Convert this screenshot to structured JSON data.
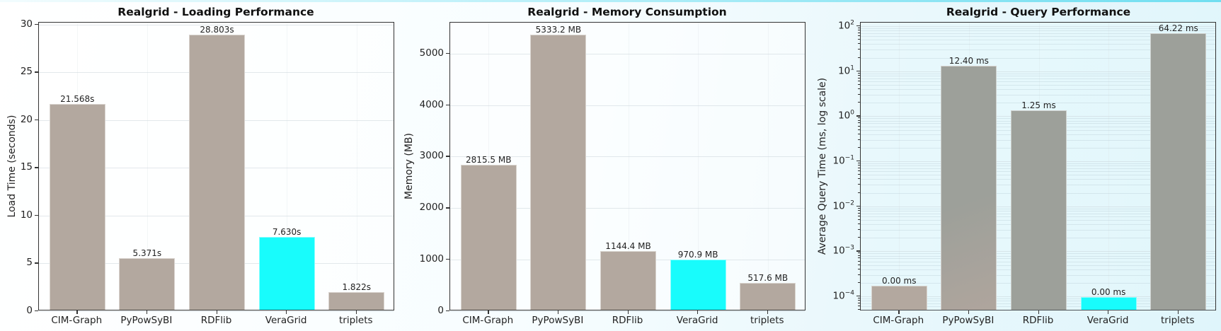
{
  "charts": [
    {
      "title": "Realgrid - Loading Performance",
      "ylabel": "Load Time (seconds)",
      "yticks": [
        "0",
        "5",
        "10",
        "15",
        "20",
        "25",
        "30"
      ],
      "categories": [
        "CIM-Graph",
        "PyPowSyBI",
        "RDFlib",
        "VeraGrid",
        "triplets"
      ],
      "labels": [
        "21.568s",
        "5.371s",
        "28.803s",
        "7.630s",
        "1.822s"
      ]
    },
    {
      "title": "Realgrid - Memory Consumption",
      "ylabel": "Memory (MB)",
      "yticks": [
        "0",
        "1000",
        "2000",
        "3000",
        "4000",
        "5000"
      ],
      "categories": [
        "CIM-Graph",
        "PyPowSyBI",
        "RDFlib",
        "VeraGrid",
        "triplets"
      ],
      "labels": [
        "2815.5 MB",
        "5333.2 MB",
        "1144.4 MB",
        "970.9 MB",
        "517.6 MB"
      ]
    },
    {
      "title": "Realgrid - Query Performance",
      "ylabel": "Average Query Time (ms, log scale)",
      "yticks": [
        "−4",
        "−3",
        "−2",
        "−1",
        "0",
        "1",
        "2"
      ],
      "ytick_base": "10",
      "categories": [
        "CIM-Graph",
        "PyPowSyBI",
        "RDFlib",
        "VeraGrid",
        "triplets"
      ],
      "labels": [
        "0.00 ms",
        "12.40 ms",
        "1.25 ms",
        "0.00 ms",
        "64.22 ms"
      ]
    }
  ],
  "colors": {
    "default_bar": "#b3a89f",
    "highlight_bar": "#18fcfc",
    "query_bar": "#9da09a"
  },
  "chart_data": [
    {
      "type": "bar",
      "title": "Realgrid - Loading Performance",
      "xlabel": "",
      "ylabel": "Load Time (seconds)",
      "categories": [
        "CIM-Graph",
        "PyPowSyBI",
        "RDFlib",
        "VeraGrid",
        "triplets"
      ],
      "values": [
        21.568,
        5.371,
        28.803,
        7.63,
        1.822
      ],
      "data_labels": [
        "21.568s",
        "5.371s",
        "28.803s",
        "7.630s",
        "1.822s"
      ],
      "ylim": [
        0,
        30.2
      ],
      "yticks": [
        0,
        5,
        10,
        15,
        20,
        25,
        30
      ],
      "grid": true,
      "highlight": "VeraGrid"
    },
    {
      "type": "bar",
      "title": "Realgrid - Memory Consumption",
      "xlabel": "",
      "ylabel": "Memory (MB)",
      "categories": [
        "CIM-Graph",
        "PyPowSyBI",
        "RDFlib",
        "VeraGrid",
        "triplets"
      ],
      "values": [
        2815.5,
        5333.2,
        1144.4,
        970.9,
        517.6
      ],
      "data_labels": [
        "2815.5 MB",
        "5333.2 MB",
        "1144.4 MB",
        "970.9 MB",
        "517.6 MB"
      ],
      "ylim": [
        0,
        5600
      ],
      "yticks": [
        0,
        1000,
        2000,
        3000,
        4000,
        5000
      ],
      "grid": true,
      "highlight": "VeraGrid"
    },
    {
      "type": "bar",
      "title": "Realgrid - Query Performance",
      "xlabel": "",
      "ylabel": "Average Query Time (ms, log scale)",
      "yscale": "log",
      "categories": [
        "CIM-Graph",
        "PyPowSyBI",
        "RDFlib",
        "VeraGrid",
        "triplets"
      ],
      "values": [
        0.00016,
        12.4,
        1.25,
        9e-05,
        64.22
      ],
      "data_labels": [
        "0.00 ms",
        "12.40 ms",
        "1.25 ms",
        "0.00 ms",
        "64.22 ms"
      ],
      "ylim": [
        4.7e-05,
        120
      ],
      "yticks": [
        0.0001,
        0.001,
        0.01,
        0.1,
        1,
        10,
        100
      ],
      "grid": true,
      "highlight": "VeraGrid"
    }
  ]
}
